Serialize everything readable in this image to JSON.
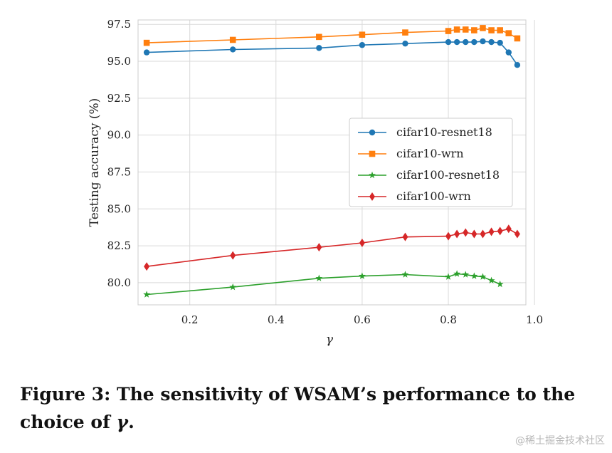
{
  "chart_data": {
    "type": "line",
    "xlabel": "γ",
    "ylabel": "Testing accuracy (%)",
    "xlim": [
      0.08,
      0.98
    ],
    "ylim": [
      78.5,
      97.8
    ],
    "xticks": [
      0.2,
      0.4,
      0.6,
      0.8,
      1.0
    ],
    "xtick_labels": [
      "0.2",
      "0.4",
      "0.6",
      "0.8",
      "1.0"
    ],
    "yticks": [
      80.0,
      82.5,
      85.0,
      87.5,
      90.0,
      92.5,
      95.0,
      97.5
    ],
    "ytick_labels": [
      "80.0",
      "82.5",
      "85.0",
      "87.5",
      "90.0",
      "92.5",
      "95.0",
      "97.5"
    ],
    "grid": true,
    "legend_position": "center-right",
    "series": [
      {
        "name": "cifar10-resnet18",
        "color": "#1f77b4",
        "marker": "circle",
        "x": [
          0.1,
          0.3,
          0.5,
          0.6,
          0.7,
          0.8,
          0.82,
          0.84,
          0.86,
          0.88,
          0.9,
          0.92,
          0.94,
          0.96
        ],
        "y": [
          95.6,
          95.8,
          95.9,
          96.1,
          96.2,
          96.3,
          96.3,
          96.3,
          96.3,
          96.35,
          96.3,
          96.25,
          95.6,
          94.75
        ]
      },
      {
        "name": "cifar10-wrn",
        "color": "#ff7f0e",
        "marker": "square",
        "x": [
          0.1,
          0.3,
          0.5,
          0.6,
          0.7,
          0.8,
          0.82,
          0.84,
          0.86,
          0.88,
          0.9,
          0.92,
          0.94,
          0.96
        ],
        "y": [
          96.25,
          96.45,
          96.65,
          96.8,
          96.95,
          97.05,
          97.15,
          97.15,
          97.1,
          97.25,
          97.1,
          97.1,
          96.9,
          96.55
        ]
      },
      {
        "name": "cifar100-resnet18",
        "color": "#2ca02c",
        "marker": "star",
        "x": [
          0.1,
          0.3,
          0.5,
          0.6,
          0.7,
          0.8,
          0.82,
          0.84,
          0.86,
          0.88,
          0.9,
          0.92
        ],
        "y": [
          79.2,
          79.7,
          80.3,
          80.45,
          80.55,
          80.4,
          80.6,
          80.55,
          80.45,
          80.4,
          80.15,
          79.9
        ]
      },
      {
        "name": "cifar100-wrn",
        "color": "#d62728",
        "marker": "diamond",
        "x": [
          0.1,
          0.3,
          0.5,
          0.6,
          0.7,
          0.8,
          0.82,
          0.84,
          0.86,
          0.88,
          0.9,
          0.92,
          0.94,
          0.96
        ],
        "y": [
          81.1,
          81.85,
          82.4,
          82.7,
          83.1,
          83.15,
          83.3,
          83.4,
          83.3,
          83.3,
          83.45,
          83.5,
          83.65,
          83.3
        ]
      }
    ]
  },
  "caption": {
    "text_before": "Figure 3: The sensitivity of WSAM’s performance to the choice of ",
    "symbol": "γ",
    "text_after": "."
  },
  "watermark": "@稀土掘金技术社区"
}
